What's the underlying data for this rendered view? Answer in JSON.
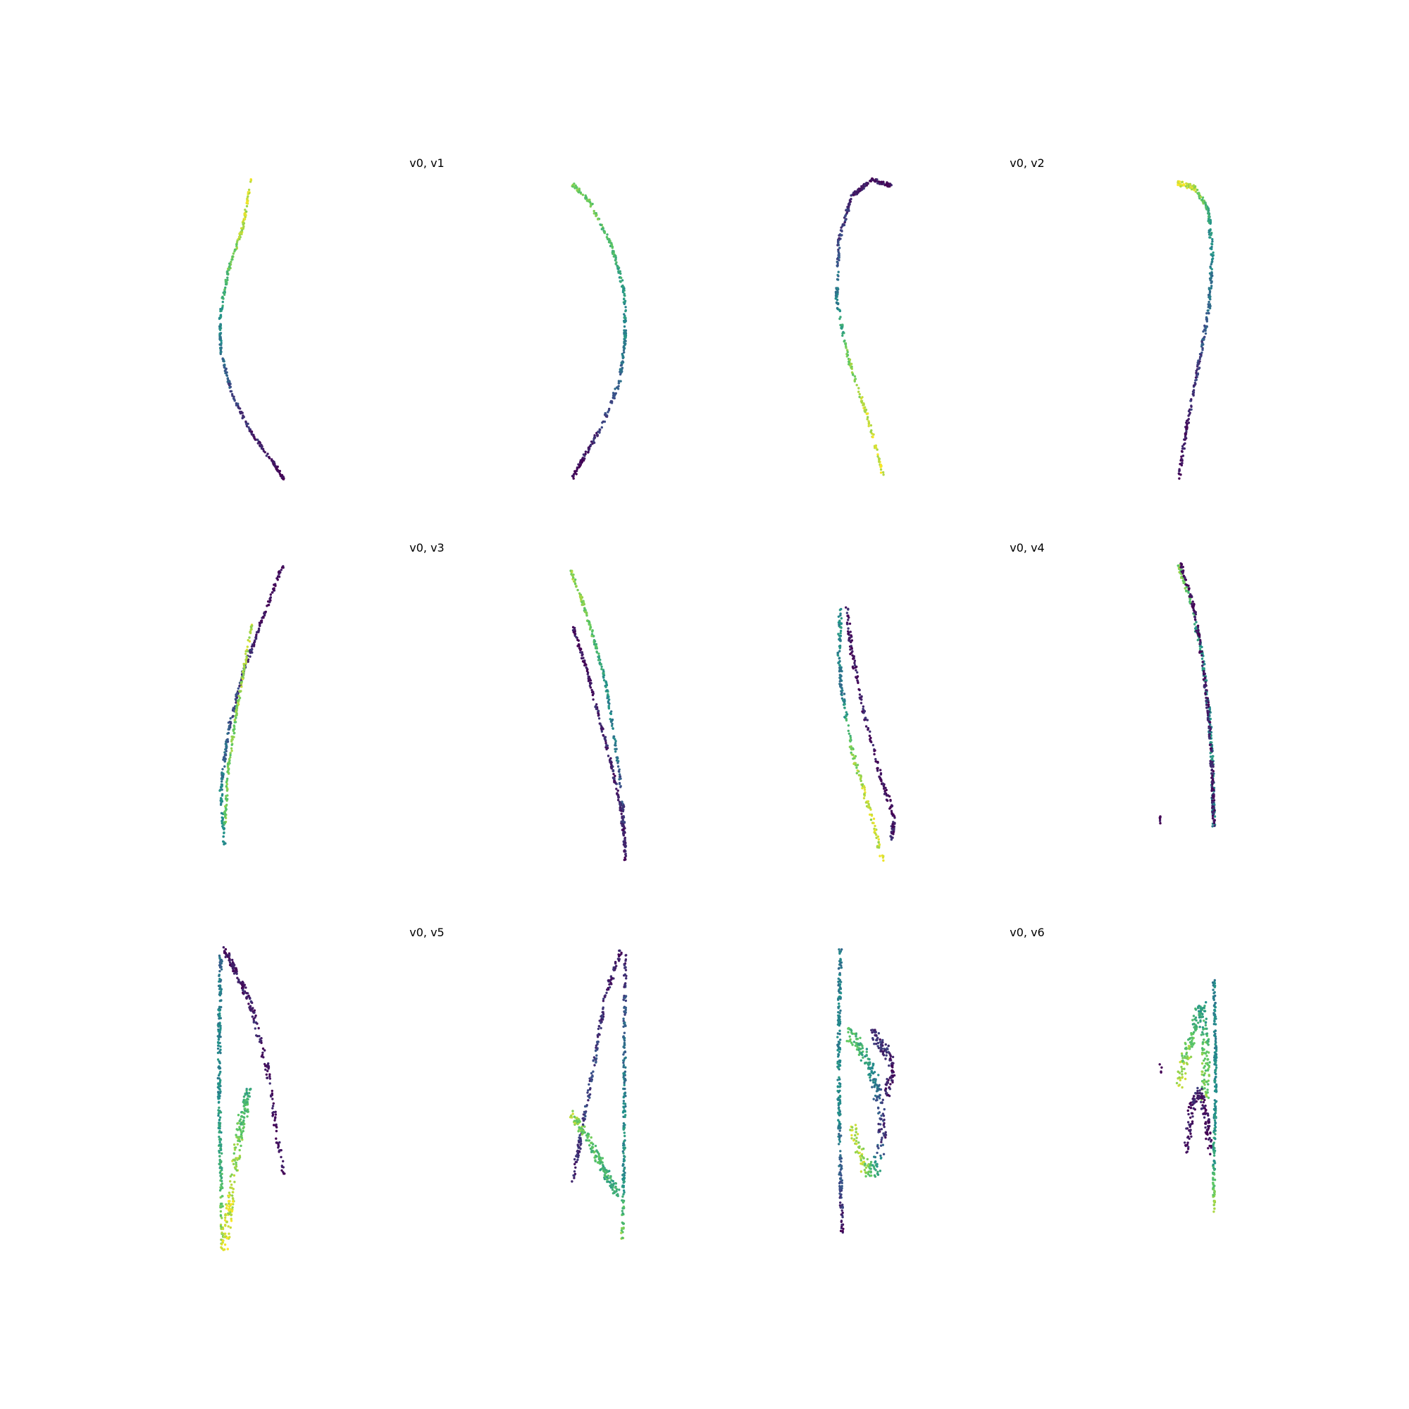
{
  "colormap": [
    "#440154",
    "#3b528b",
    "#21918c",
    "#5ec962",
    "#fde725"
  ],
  "chart_data": [
    {
      "type": "scatter",
      "title": "v0, v1",
      "grid": false,
      "axes": "off",
      "series": [
        {
          "curve": [
            [
              -0.56,
              1.0
            ],
            [
              -0.66,
              0.7
            ],
            [
              -0.85,
              0.4
            ],
            [
              -0.96,
              0.1
            ],
            [
              -0.95,
              -0.15
            ],
            [
              -0.8,
              -0.45
            ],
            [
              -0.55,
              -0.7
            ],
            [
              -0.3,
              -0.88
            ],
            [
              -0.15,
              -1.0
            ]
          ],
          "c": [
            0.95,
            0.9,
            0.75,
            0.5,
            0.4,
            0.2,
            0.1,
            0.05,
            0.0
          ],
          "jitter": 0.012,
          "n": 320
        },
        {
          "curve": [
            [
              0.16,
              0.98
            ],
            [
              0.4,
              0.85
            ],
            [
              0.68,
              0.55
            ],
            [
              0.84,
              0.25
            ],
            [
              0.85,
              -0.05
            ],
            [
              0.78,
              -0.35
            ],
            [
              0.55,
              -0.65
            ],
            [
              0.3,
              -0.88
            ],
            [
              0.17,
              -1.0
            ]
          ],
          "c": [
            0.8,
            0.75,
            0.7,
            0.55,
            0.45,
            0.3,
            0.15,
            0.05,
            0.0
          ],
          "jitter": 0.014,
          "n": 320
        }
      ]
    },
    {
      "type": "scatter",
      "title": "v0, v2",
      "grid": false,
      "axes": "off",
      "series": [
        {
          "curve": [
            [
              -0.15,
              -0.98
            ],
            [
              -0.35,
              -0.6
            ],
            [
              -0.6,
              -0.2
            ],
            [
              -0.75,
              0.2
            ],
            [
              -0.72,
              0.6
            ],
            [
              -0.55,
              0.9
            ],
            [
              -0.3,
              1.0
            ],
            [
              -0.05,
              0.97
            ]
          ],
          "c": [
            0.95,
            0.9,
            0.8,
            0.45,
            0.2,
            0.1,
            0.05,
            0.05
          ],
          "jitter": 0.014,
          "n": 330
        },
        {
          "curve": [
            [
              0.25,
              0.98
            ],
            [
              0.45,
              0.95
            ],
            [
              0.63,
              0.8
            ],
            [
              0.68,
              0.5
            ],
            [
              0.64,
              0.15
            ],
            [
              0.52,
              -0.2
            ],
            [
              0.37,
              -0.6
            ],
            [
              0.25,
              -1.0
            ]
          ],
          "c": [
            0.95,
            0.9,
            0.6,
            0.45,
            0.35,
            0.2,
            0.1,
            0.0
          ],
          "jitter": 0.016,
          "n": 330
        }
      ]
    },
    {
      "type": "scatter",
      "title": "v0, v3",
      "grid": false,
      "axes": "off",
      "series": [
        {
          "curve": [
            [
              -0.15,
              1.0
            ],
            [
              -0.4,
              0.65
            ],
            [
              -0.65,
              0.3
            ],
            [
              -0.85,
              -0.1
            ],
            [
              -0.95,
              -0.5
            ],
            [
              -0.9,
              -0.9
            ]
          ],
          "c": [
            0.0,
            0.05,
            0.15,
            0.25,
            0.45,
            0.5
          ],
          "jitter": 0.014,
          "n": 260
        },
        {
          "curve": [
            [
              -0.55,
              0.6
            ],
            [
              -0.65,
              0.3
            ],
            [
              -0.75,
              0.0
            ],
            [
              -0.85,
              -0.35
            ],
            [
              -0.9,
              -0.75
            ]
          ],
          "c": [
            0.9,
            0.85,
            0.8,
            0.8,
            0.75
          ],
          "jitter": 0.012,
          "n": 160
        },
        {
          "curve": [
            [
              0.15,
              0.96
            ],
            [
              0.3,
              0.75
            ],
            [
              0.45,
              0.5
            ],
            [
              0.6,
              0.2
            ],
            [
              0.72,
              -0.2
            ],
            [
              0.82,
              -0.6
            ],
            [
              0.85,
              -1.0
            ]
          ],
          "c": [
            0.85,
            0.8,
            0.7,
            0.5,
            0.4,
            0.2,
            0.05
          ],
          "jitter": 0.012,
          "n": 240
        },
        {
          "curve": [
            [
              0.18,
              0.58
            ],
            [
              0.35,
              0.3
            ],
            [
              0.5,
              0.0
            ],
            [
              0.65,
              -0.3
            ],
            [
              0.78,
              -0.6
            ],
            [
              0.85,
              -0.9
            ]
          ],
          "c": [
            0.05,
            0.05,
            0.1,
            0.1,
            0.1,
            0.1
          ],
          "jitter": 0.012,
          "n": 200
        }
      ]
    },
    {
      "type": "scatter",
      "title": "v0, v4",
      "grid": false,
      "axes": "off",
      "series": [
        {
          "curve": [
            [
              -0.7,
              0.7
            ],
            [
              -0.72,
              0.4
            ],
            [
              -0.68,
              0.15
            ],
            [
              -0.55,
              -0.25
            ],
            [
              -0.35,
              -0.6
            ],
            [
              -0.15,
              -1.0
            ]
          ],
          "c": [
            0.5,
            0.45,
            0.4,
            0.8,
            0.9,
            0.9
          ],
          "jitter": 0.02,
          "n": 200
        },
        {
          "curve": [
            [
              -0.62,
              0.72
            ],
            [
              -0.55,
              0.4
            ],
            [
              -0.4,
              0.0
            ],
            [
              -0.2,
              -0.4
            ],
            [
              0.0,
              -0.7
            ],
            [
              -0.05,
              -0.85
            ]
          ],
          "c": [
            0.1,
            0.05,
            0.1,
            0.05,
            0.0,
            0.15
          ],
          "jitter": 0.02,
          "n": 200
        },
        {
          "curve": [
            [
              0.25,
              1.0
            ],
            [
              0.4,
              0.75
            ],
            [
              0.55,
              0.4
            ],
            [
              0.64,
              0.0
            ],
            [
              0.68,
              -0.35
            ],
            [
              0.7,
              -0.75
            ]
          ],
          "c": [
            0.8,
            0.7,
            0.5,
            0.45,
            0.5,
            0.45
          ],
          "jitter": 0.018,
          "n": 240
        },
        {
          "curve": [
            [
              0.28,
              1.0
            ],
            [
              0.45,
              0.7
            ],
            [
              0.55,
              0.35
            ],
            [
              0.63,
              0.0
            ],
            [
              0.68,
              -0.4
            ],
            [
              0.7,
              -0.75
            ]
          ],
          "c": [
            0.0,
            0.05,
            0.05,
            0.1,
            0.05,
            0.1
          ],
          "jitter": 0.016,
          "n": 200
        }
      ]
    },
    {
      "type": "scatter",
      "title": "v0, v5",
      "grid": false,
      "axes": "off",
      "series": [
        {
          "curve": [
            [
              -0.95,
              0.95
            ],
            [
              -0.97,
              0.5
            ],
            [
              -0.97,
              0.0
            ],
            [
              -0.95,
              -0.5
            ],
            [
              -0.93,
              -1.0
            ]
          ],
          "c": [
            0.35,
            0.45,
            0.5,
            0.65,
            0.9
          ],
          "jitter": 0.018,
          "n": 240
        },
        {
          "curve": [
            [
              -0.9,
              1.0
            ],
            [
              -0.75,
              0.85
            ],
            [
              -0.55,
              0.6
            ],
            [
              -0.35,
              0.2
            ],
            [
              -0.15,
              -0.5
            ]
          ],
          "c": [
            0.05,
            0.05,
            0.1,
            0.05,
            0.05
          ],
          "jitter": 0.025,
          "n": 200
        },
        {
          "curve": [
            [
              -0.9,
              -1.0
            ],
            [
              -0.8,
              -0.6
            ],
            [
              -0.7,
              -0.2
            ],
            [
              -0.6,
              0.05
            ]
          ],
          "c": [
            0.95,
            0.9,
            0.75,
            0.6
          ],
          "jitter": 0.045,
          "n": 200
        },
        {
          "curve": [
            [
              0.85,
              0.99
            ],
            [
              0.84,
              0.5
            ],
            [
              0.84,
              0.0
            ],
            [
              0.83,
              -0.5
            ],
            [
              0.81,
              -0.95
            ]
          ],
          "c": [
            0.05,
            0.3,
            0.45,
            0.5,
            0.8
          ],
          "jitter": 0.016,
          "n": 200
        },
        {
          "curve": [
            [
              0.8,
              1.0
            ],
            [
              0.6,
              0.7
            ],
            [
              0.45,
              0.25
            ],
            [
              0.3,
              -0.2
            ],
            [
              0.17,
              -0.55
            ]
          ],
          "c": [
            0.05,
            0.1,
            0.2,
            0.2,
            0.1
          ],
          "jitter": 0.02,
          "n": 180
        },
        {
          "curve": [
            [
              0.15,
              -0.1
            ],
            [
              0.35,
              -0.25
            ],
            [
              0.55,
              -0.45
            ],
            [
              0.75,
              -0.65
            ]
          ],
          "c": [
            0.85,
            0.75,
            0.65,
            0.6
          ],
          "jitter": 0.03,
          "n": 160
        }
      ]
    },
    {
      "type": "scatter",
      "title": "v0, v6",
      "grid": false,
      "axes": "off",
      "series": [
        {
          "curve": [
            [
              -0.7,
              1.0
            ],
            [
              -0.72,
              0.5
            ],
            [
              -0.72,
              0.0
            ],
            [
              -0.7,
              -0.5
            ],
            [
              -0.68,
              -0.9
            ]
          ],
          "c": [
            0.4,
            0.45,
            0.5,
            0.3,
            0.05
          ],
          "jitter": 0.018,
          "n": 240
        },
        {
          "curve": [
            [
              -0.62,
              0.45
            ],
            [
              -0.45,
              0.35
            ],
            [
              -0.3,
              0.2
            ],
            [
              -0.2,
              0.0
            ],
            [
              -0.15,
              -0.25
            ],
            [
              -0.25,
              -0.5
            ],
            [
              -0.4,
              -0.45
            ],
            [
              -0.55,
              -0.2
            ]
          ],
          "c": [
            0.7,
            0.65,
            0.5,
            0.3,
            0.1,
            0.6,
            0.85,
            0.9
          ],
          "jitter": 0.05,
          "n": 260
        },
        {
          "curve": [
            [
              -0.3,
              0.45
            ],
            [
              -0.15,
              0.35
            ],
            [
              0.0,
              0.2
            ],
            [
              -0.1,
              0.05
            ]
          ],
          "c": [
            0.1,
            0.15,
            0.05,
            0.1
          ],
          "jitter": 0.04,
          "n": 120
        },
        {
          "curve": [
            [
              0.7,
              0.8
            ],
            [
              0.72,
              0.4
            ],
            [
              0.72,
              0.0
            ],
            [
              0.7,
              -0.4
            ],
            [
              0.7,
              -0.76
            ]
          ],
          "c": [
            0.45,
            0.45,
            0.5,
            0.55,
            0.85
          ],
          "jitter": 0.014,
          "n": 200
        },
        {
          "curve": [
            [
              0.25,
              0.1
            ],
            [
              0.35,
              0.3
            ],
            [
              0.45,
              0.5
            ],
            [
              0.55,
              0.6
            ],
            [
              0.6,
              0.3
            ],
            [
              0.58,
              0.0
            ]
          ],
          "c": [
            0.9,
            0.8,
            0.65,
            0.55,
            0.75,
            0.8
          ],
          "jitter": 0.05,
          "n": 220
        },
        {
          "curve": [
            [
              0.35,
              -0.35
            ],
            [
              0.4,
              -0.1
            ],
            [
              0.5,
              0.05
            ],
            [
              0.6,
              -0.1
            ],
            [
              0.65,
              -0.35
            ]
          ],
          "c": [
            0.05,
            0.05,
            0.1,
            0.05,
            0.0
          ],
          "jitter": 0.035,
          "n": 140
        }
      ]
    }
  ]
}
